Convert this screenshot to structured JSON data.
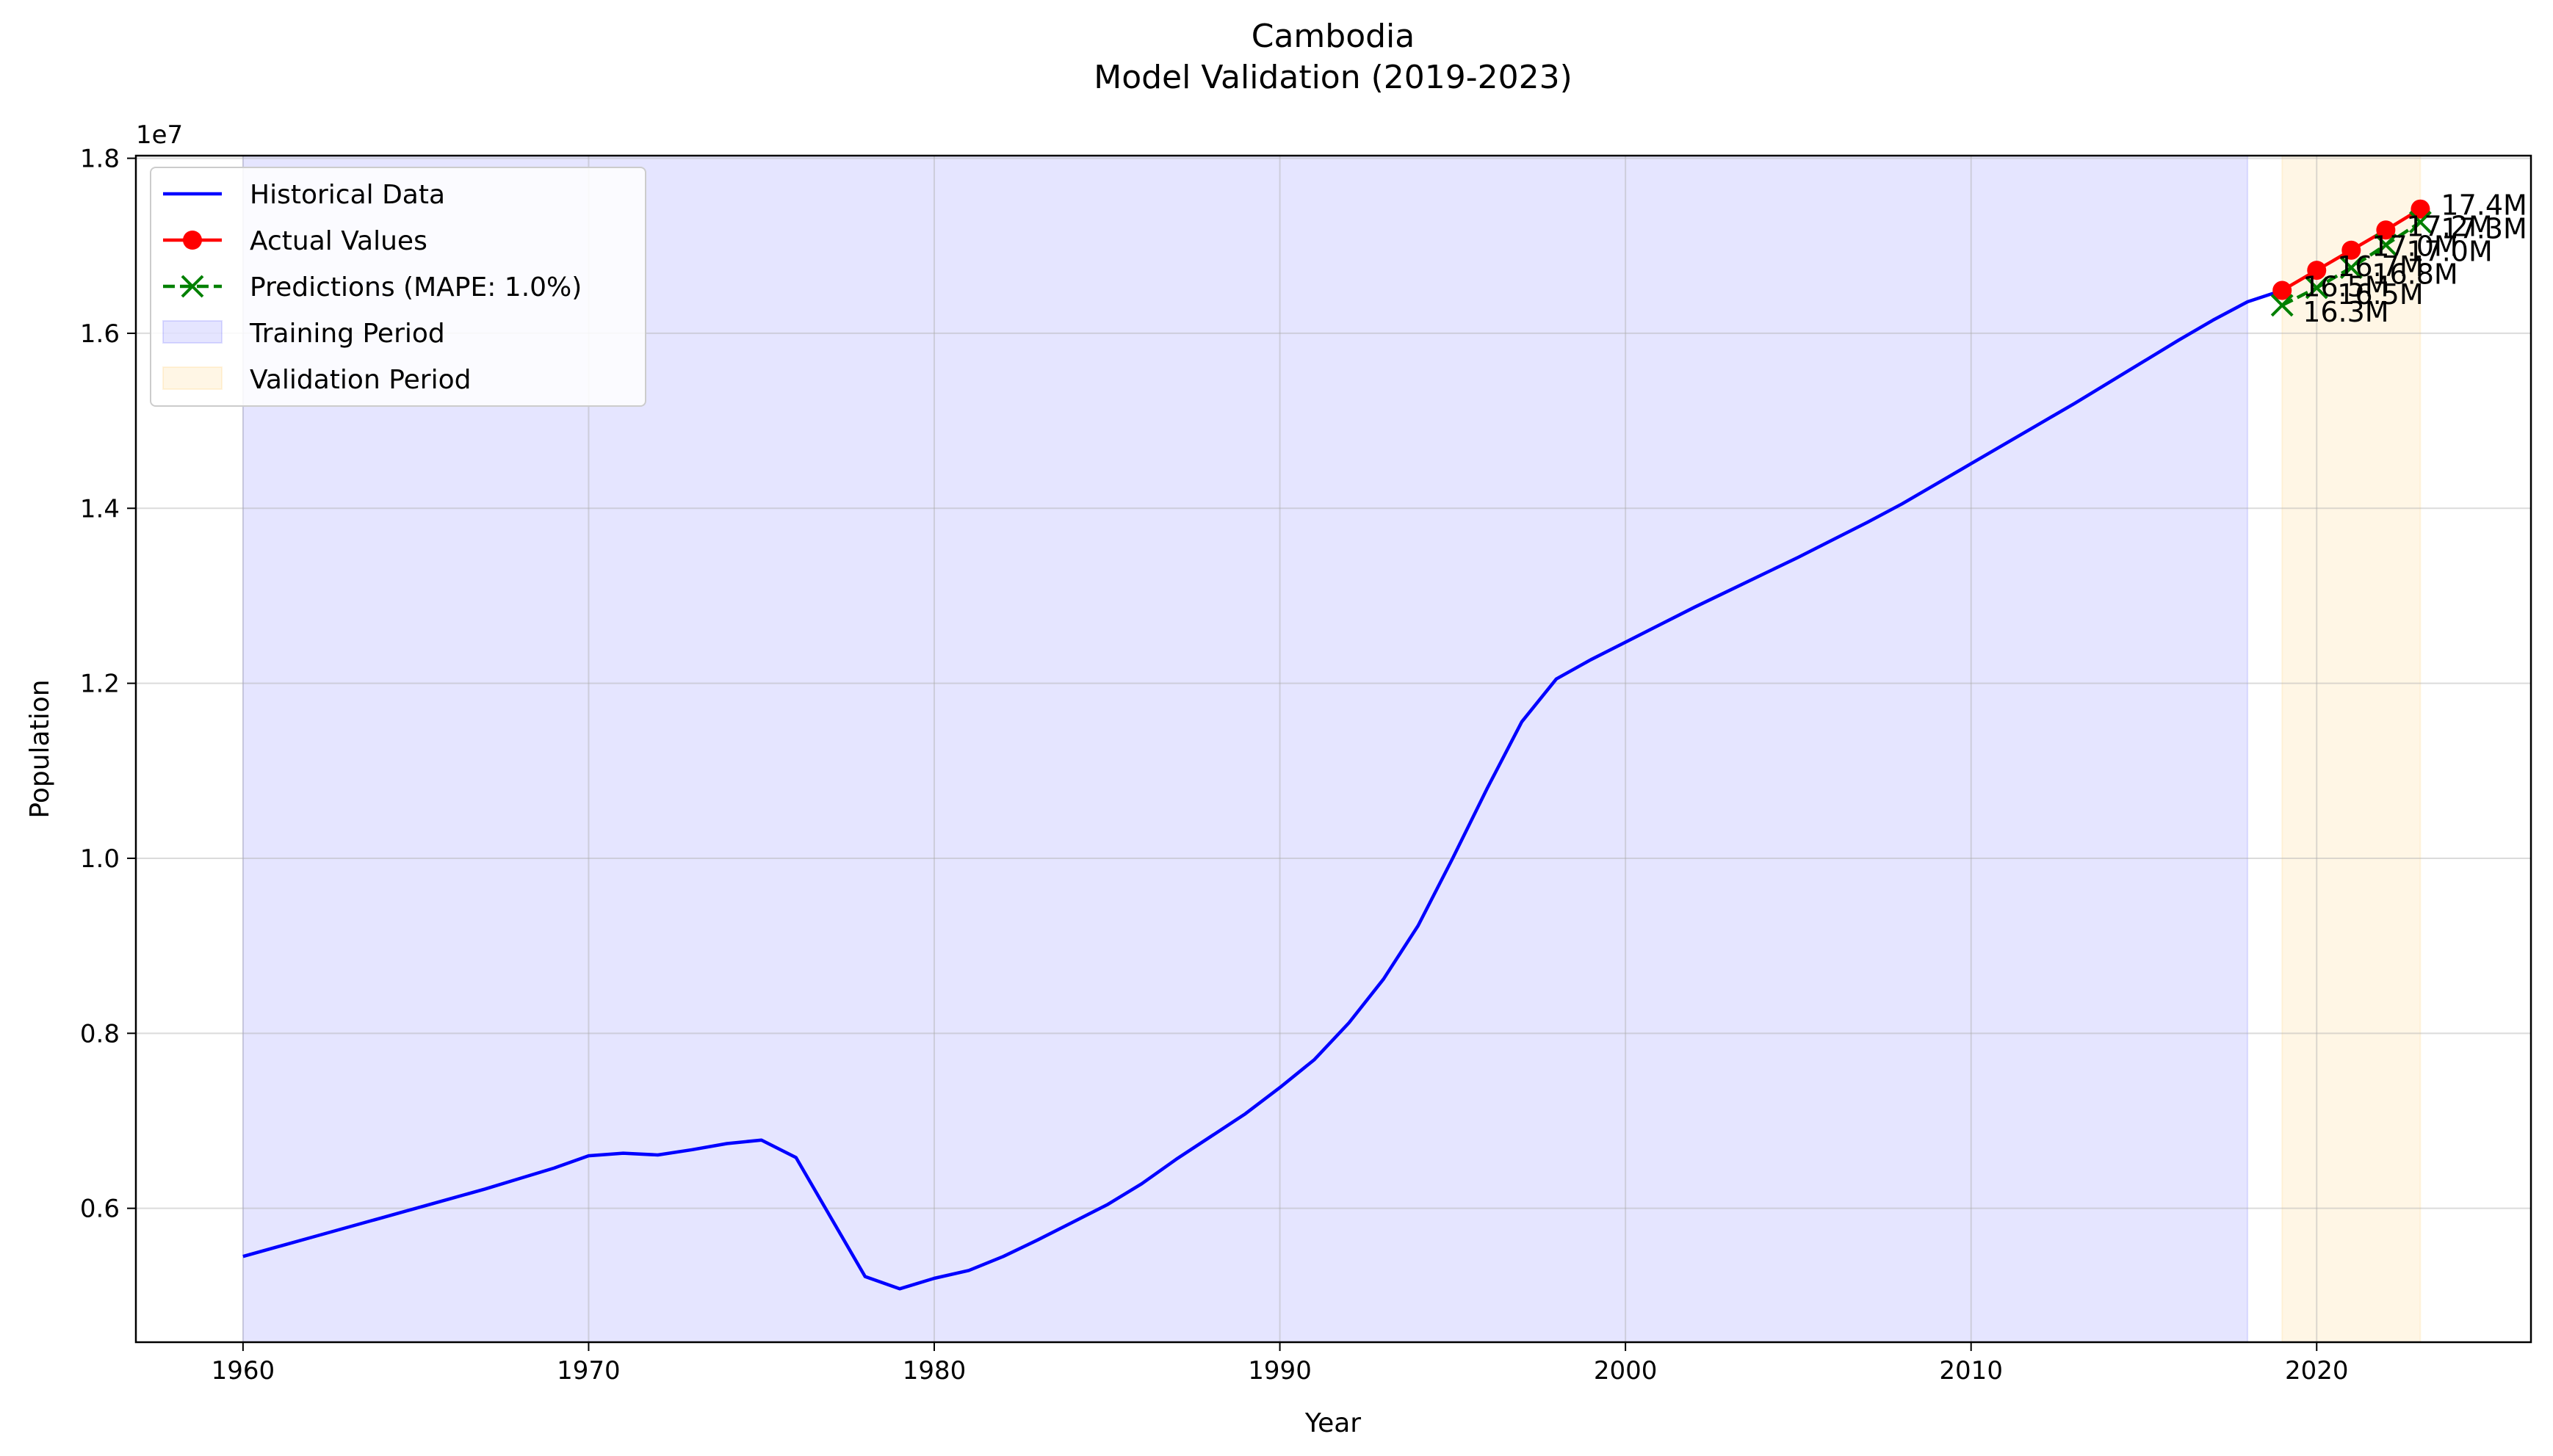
{
  "chart_data": {
    "type": "line",
    "title": "Cambodia",
    "subtitle": "Model Validation (2019-2023)",
    "xlabel": "Year",
    "ylabel": "Population",
    "y_offset_label": "1e7",
    "xlim": [
      1956.9,
      2026.2
    ],
    "ylim": [
      4470000,
      18030000
    ],
    "x_ticks": [
      1960,
      1970,
      1980,
      1990,
      2000,
      2010,
      2020
    ],
    "x_tick_labels": [
      "1960",
      "1970",
      "1980",
      "1990",
      "2000",
      "2010",
      "2020"
    ],
    "y_ticks": [
      6000000,
      8000000,
      10000000,
      12000000,
      14000000,
      16000000,
      18000000
    ],
    "y_tick_labels": [
      "0.6",
      "0.8",
      "1.0",
      "1.2",
      "1.4",
      "1.6",
      "1.8"
    ],
    "grid": true,
    "legend_position": "top-left",
    "training_period": [
      1960,
      2018
    ],
    "validation_period": [
      2019,
      2023
    ],
    "series": [
      {
        "name": "Historical Data",
        "color": "#0000ff",
        "style": "solid",
        "x": [
          1960,
          1961,
          1962,
          1963,
          1964,
          1965,
          1966,
          1967,
          1968,
          1969,
          1970,
          1971,
          1972,
          1973,
          1974,
          1975,
          1976,
          1977,
          1978,
          1979,
          1980,
          1981,
          1982,
          1983,
          1984,
          1985,
          1986,
          1987,
          1988,
          1989,
          1990,
          1991,
          1992,
          1993,
          1994,
          1995,
          1996,
          1997,
          1998,
          1999,
          2000,
          2001,
          2002,
          2003,
          2004,
          2005,
          2006,
          2007,
          2008,
          2009,
          2010,
          2011,
          2012,
          2013,
          2014,
          2015,
          2016,
          2017,
          2018,
          2019
        ],
        "y": [
          5450000,
          5560000,
          5670000,
          5780000,
          5890000,
          6000000,
          6110000,
          6220000,
          6340000,
          6460000,
          6600000,
          6630000,
          6610000,
          6670000,
          6740000,
          6780000,
          6580000,
          5900000,
          5220000,
          5080000,
          5200000,
          5290000,
          5450000,
          5640000,
          5840000,
          6040000,
          6280000,
          6560000,
          6820000,
          7080000,
          7380000,
          7700000,
          8120000,
          8620000,
          9230000,
          10000000,
          10800000,
          11560000,
          12050000,
          12270000,
          12470000,
          12670000,
          12870000,
          13060000,
          13250000,
          13440000,
          13640000,
          13840000,
          14050000,
          14280000,
          14510000,
          14740000,
          14970000,
          15200000,
          15440000,
          15680000,
          15920000,
          16150000,
          16360000,
          16490000
        ]
      },
      {
        "name": "Actual Values",
        "color": "#ff0000",
        "style": "solid-circle",
        "x": [
          2019,
          2020,
          2021,
          2022,
          2023
        ],
        "y": [
          16490000,
          16720000,
          16950000,
          17180000,
          17420000
        ],
        "labels": [
          "16.5M",
          "16.7M",
          "17.0M",
          "17.2M",
          "17.4M"
        ]
      },
      {
        "name": "Predictions (MAPE: 1.0%)",
        "color": "#008000",
        "style": "dashed-x",
        "x": [
          2019,
          2020,
          2021,
          2022,
          2023
        ],
        "y": [
          16320000,
          16520000,
          16750000,
          17010000,
          17270000
        ],
        "labels": [
          "16.3M",
          "16.5M",
          "16.8M",
          "17.0M",
          "17.3M"
        ]
      }
    ],
    "legend": [
      {
        "label": "Historical Data",
        "kind": "line",
        "color": "#0000ff"
      },
      {
        "label": "Actual Values",
        "kind": "line-circle",
        "color": "#ff0000"
      },
      {
        "label": "Predictions (MAPE: 1.0%)",
        "kind": "dashed-x",
        "color": "#008000"
      },
      {
        "label": "Training Period",
        "kind": "patch",
        "color": "#0000ff"
      },
      {
        "label": "Validation Period",
        "kind": "patch",
        "color": "#ffa500"
      }
    ]
  }
}
